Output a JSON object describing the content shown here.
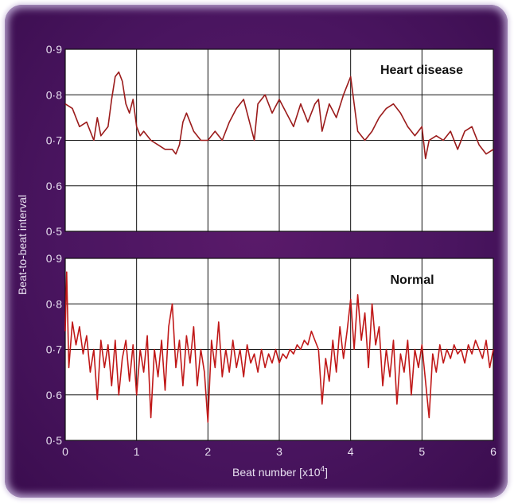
{
  "chart_data": [
    {
      "type": "line",
      "label": "Heart disease",
      "ylim": [
        0.5,
        0.9
      ],
      "xlim": [
        0,
        6
      ],
      "yticks": [
        "0·5",
        "0·6",
        "0·7",
        "0·8",
        "0·9"
      ],
      "series": [
        {
          "name": "Heart disease",
          "color": "#9b1b1b",
          "x": [
            0.0,
            0.1,
            0.2,
            0.3,
            0.4,
            0.45,
            0.5,
            0.6,
            0.65,
            0.7,
            0.75,
            0.8,
            0.85,
            0.9,
            0.95,
            1.0,
            1.05,
            1.1,
            1.2,
            1.3,
            1.4,
            1.5,
            1.55,
            1.6,
            1.65,
            1.7,
            1.8,
            1.9,
            2.0,
            2.1,
            2.2,
            2.3,
            2.4,
            2.5,
            2.6,
            2.65,
            2.7,
            2.8,
            2.9,
            3.0,
            3.1,
            3.2,
            3.3,
            3.4,
            3.5,
            3.55,
            3.6,
            3.7,
            3.8,
            3.9,
            3.95,
            4.0,
            4.05,
            4.1,
            4.2,
            4.3,
            4.4,
            4.5,
            4.6,
            4.7,
            4.8,
            4.9,
            5.0,
            5.05,
            5.1,
            5.2,
            5.3,
            5.4,
            5.5,
            5.6,
            5.7,
            5.8,
            5.9,
            6.0
          ],
          "y": [
            0.78,
            0.77,
            0.73,
            0.74,
            0.7,
            0.75,
            0.71,
            0.73,
            0.79,
            0.84,
            0.85,
            0.83,
            0.78,
            0.76,
            0.79,
            0.73,
            0.71,
            0.72,
            0.7,
            0.69,
            0.68,
            0.68,
            0.67,
            0.69,
            0.74,
            0.76,
            0.72,
            0.7,
            0.7,
            0.72,
            0.7,
            0.74,
            0.77,
            0.79,
            0.73,
            0.7,
            0.78,
            0.8,
            0.76,
            0.79,
            0.76,
            0.73,
            0.78,
            0.74,
            0.78,
            0.79,
            0.72,
            0.78,
            0.75,
            0.8,
            0.82,
            0.84,
            0.78,
            0.72,
            0.7,
            0.72,
            0.75,
            0.77,
            0.78,
            0.76,
            0.73,
            0.71,
            0.73,
            0.66,
            0.7,
            0.71,
            0.7,
            0.72,
            0.68,
            0.72,
            0.73,
            0.69,
            0.67,
            0.68
          ]
        }
      ]
    },
    {
      "type": "line",
      "label": "Normal",
      "ylim": [
        0.5,
        0.9
      ],
      "xlim": [
        0,
        6
      ],
      "yticks": [
        "0·5",
        "0·6",
        "0·7",
        "0·8",
        "0·9"
      ],
      "xticks": [
        "0",
        "1",
        "2",
        "3",
        "4",
        "5",
        "6"
      ],
      "series": [
        {
          "name": "Normal",
          "color": "#c01818",
          "x": [
            0.0,
            0.02,
            0.05,
            0.1,
            0.15,
            0.2,
            0.25,
            0.3,
            0.35,
            0.4,
            0.45,
            0.5,
            0.55,
            0.6,
            0.65,
            0.7,
            0.75,
            0.8,
            0.85,
            0.9,
            0.95,
            1.0,
            1.05,
            1.1,
            1.15,
            1.2,
            1.25,
            1.3,
            1.35,
            1.4,
            1.45,
            1.5,
            1.55,
            1.6,
            1.65,
            1.7,
            1.75,
            1.8,
            1.85,
            1.9,
            1.95,
            2.0,
            2.05,
            2.1,
            2.15,
            2.2,
            2.25,
            2.3,
            2.35,
            2.4,
            2.45,
            2.5,
            2.55,
            2.6,
            2.65,
            2.7,
            2.75,
            2.8,
            2.85,
            2.9,
            2.95,
            3.0,
            3.05,
            3.1,
            3.15,
            3.2,
            3.25,
            3.3,
            3.35,
            3.4,
            3.45,
            3.5,
            3.55,
            3.6,
            3.65,
            3.7,
            3.75,
            3.8,
            3.85,
            3.9,
            3.95,
            4.0,
            4.05,
            4.1,
            4.15,
            4.2,
            4.25,
            4.3,
            4.35,
            4.4,
            4.45,
            4.5,
            4.55,
            4.6,
            4.65,
            4.7,
            4.75,
            4.8,
            4.85,
            4.9,
            4.95,
            5.0,
            5.05,
            5.1,
            5.15,
            5.2,
            5.25,
            5.3,
            5.35,
            5.4,
            5.45,
            5.5,
            5.55,
            5.6,
            5.65,
            5.7,
            5.75,
            5.8,
            5.85,
            5.9,
            5.95,
            6.0
          ],
          "y": [
            0.74,
            0.87,
            0.66,
            0.76,
            0.71,
            0.75,
            0.69,
            0.73,
            0.65,
            0.7,
            0.59,
            0.72,
            0.66,
            0.71,
            0.62,
            0.72,
            0.6,
            0.68,
            0.72,
            0.63,
            0.71,
            0.6,
            0.7,
            0.65,
            0.73,
            0.55,
            0.7,
            0.64,
            0.72,
            0.61,
            0.75,
            0.8,
            0.66,
            0.72,
            0.62,
            0.73,
            0.67,
            0.75,
            0.62,
            0.7,
            0.65,
            0.54,
            0.72,
            0.66,
            0.76,
            0.64,
            0.7,
            0.65,
            0.72,
            0.66,
            0.7,
            0.64,
            0.71,
            0.67,
            0.69,
            0.65,
            0.7,
            0.66,
            0.69,
            0.67,
            0.7,
            0.67,
            0.69,
            0.68,
            0.7,
            0.69,
            0.71,
            0.7,
            0.72,
            0.71,
            0.74,
            0.72,
            0.7,
            0.58,
            0.68,
            0.63,
            0.72,
            0.65,
            0.75,
            0.68,
            0.74,
            0.81,
            0.7,
            0.82,
            0.72,
            0.78,
            0.66,
            0.8,
            0.71,
            0.75,
            0.62,
            0.7,
            0.64,
            0.72,
            0.58,
            0.69,
            0.65,
            0.72,
            0.6,
            0.7,
            0.66,
            0.71,
            0.63,
            0.55,
            0.69,
            0.65,
            0.71,
            0.67,
            0.7,
            0.68,
            0.71,
            0.69,
            0.7,
            0.67,
            0.71,
            0.69,
            0.72,
            0.7,
            0.68,
            0.72,
            0.66,
            0.7
          ]
        }
      ]
    }
  ],
  "labels": {
    "ylabel": "Beat-to-beat interval",
    "xlabel": "Beat number [x10",
    "xlabel_exp": "4",
    "xlabel_end": "]"
  },
  "colors": {
    "frame": "#4a1560",
    "grid": "#111111",
    "tick_text": "#e8e0f0"
  }
}
